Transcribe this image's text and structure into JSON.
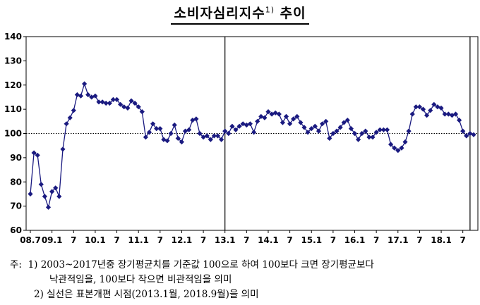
{
  "title": "소비자심리지수",
  "title_sup": "1)",
  "title_suffix": " 추이",
  "chart_data": {
    "type": "line",
    "title": "소비자심리지수1) 추이",
    "xlabel": "",
    "ylabel": "",
    "ylim": [
      60,
      140
    ],
    "yticks": [
      60,
      70,
      80,
      90,
      100,
      110,
      120,
      130,
      140
    ],
    "x_start": "2008.7",
    "x_end": "2019.3",
    "x_tick_labels": [
      {
        "label": "08.7",
        "month_index": 0
      },
      {
        "label": "09.1",
        "month_index": 6
      },
      {
        "label": "7",
        "month_index": 12
      },
      {
        "label": "10.1",
        "month_index": 18
      },
      {
        "label": "7",
        "month_index": 24
      },
      {
        "label": "11.1",
        "month_index": 30
      },
      {
        "label": "7",
        "month_index": 36
      },
      {
        "label": "12.1",
        "month_index": 42
      },
      {
        "label": "7",
        "month_index": 48
      },
      {
        "label": "13.1",
        "month_index": 54
      },
      {
        "label": "7",
        "month_index": 60
      },
      {
        "label": "14.1",
        "month_index": 66
      },
      {
        "label": "7",
        "month_index": 72
      },
      {
        "label": "15.1",
        "month_index": 78
      },
      {
        "label": "7",
        "month_index": 84
      },
      {
        "label": "16.1",
        "month_index": 90
      },
      {
        "label": "7",
        "month_index": 96
      },
      {
        "label": "17.1",
        "month_index": 102
      },
      {
        "label": "7",
        "month_index": 108
      },
      {
        "label": "18.1",
        "month_index": 114
      },
      {
        "label": "7",
        "month_index": 120
      }
    ],
    "reference_line": 100,
    "vertical_markers": [
      "2013.1",
      "2018.9"
    ],
    "series": [
      {
        "color": "#1a1a80",
        "values": [
          75,
          92,
          91,
          79,
          74,
          69.5,
          76,
          77.5,
          74,
          93.5,
          104,
          106.5,
          109.5,
          116,
          115.5,
          120.5,
          116,
          115,
          115.5,
          113,
          113,
          112.5,
          112.5,
          114,
          114,
          112,
          111,
          110.5,
          113.5,
          112.5,
          111,
          109,
          98.5,
          100.5,
          104,
          102,
          102,
          97.5,
          97,
          100,
          103.5,
          98,
          96.5,
          101,
          101.5,
          105.5,
          106,
          100,
          98.5,
          99,
          97.5,
          99,
          99,
          97.5,
          101,
          100,
          103,
          101.5,
          103,
          104,
          103.5,
          104,
          100.5,
          105,
          107,
          106.5,
          109,
          108,
          108.5,
          108,
          104.5,
          107,
          104,
          106,
          107,
          104.5,
          102.5,
          100.5,
          102,
          103,
          101,
          104,
          105,
          98,
          100,
          101,
          102.5,
          104.5,
          105.5,
          102,
          100,
          97.5,
          100,
          101,
          98.5,
          98.5,
          100.5,
          101.5,
          101.5,
          101.5,
          95.5,
          94,
          93,
          94,
          96.5,
          101,
          108,
          111,
          111,
          110,
          107.5,
          109.5,
          112,
          111,
          110.5,
          108,
          108,
          107.5,
          108,
          105.5,
          101,
          99,
          100,
          99.5
        ]
      }
    ]
  },
  "notes": {
    "prefix": "주:",
    "n1_num": "1)",
    "n1_line1": "2003~2017년중 장기평균치를 기준값 100으로 하여 100보다 크면 장기평균보다",
    "n1_line2": "낙관적임을, 100보다 작으면 비관적임을 의미",
    "n2_num": "2)",
    "n2_text": "실선은 표본개편 시점(2013.1월, 2018.9월)을 의미"
  }
}
